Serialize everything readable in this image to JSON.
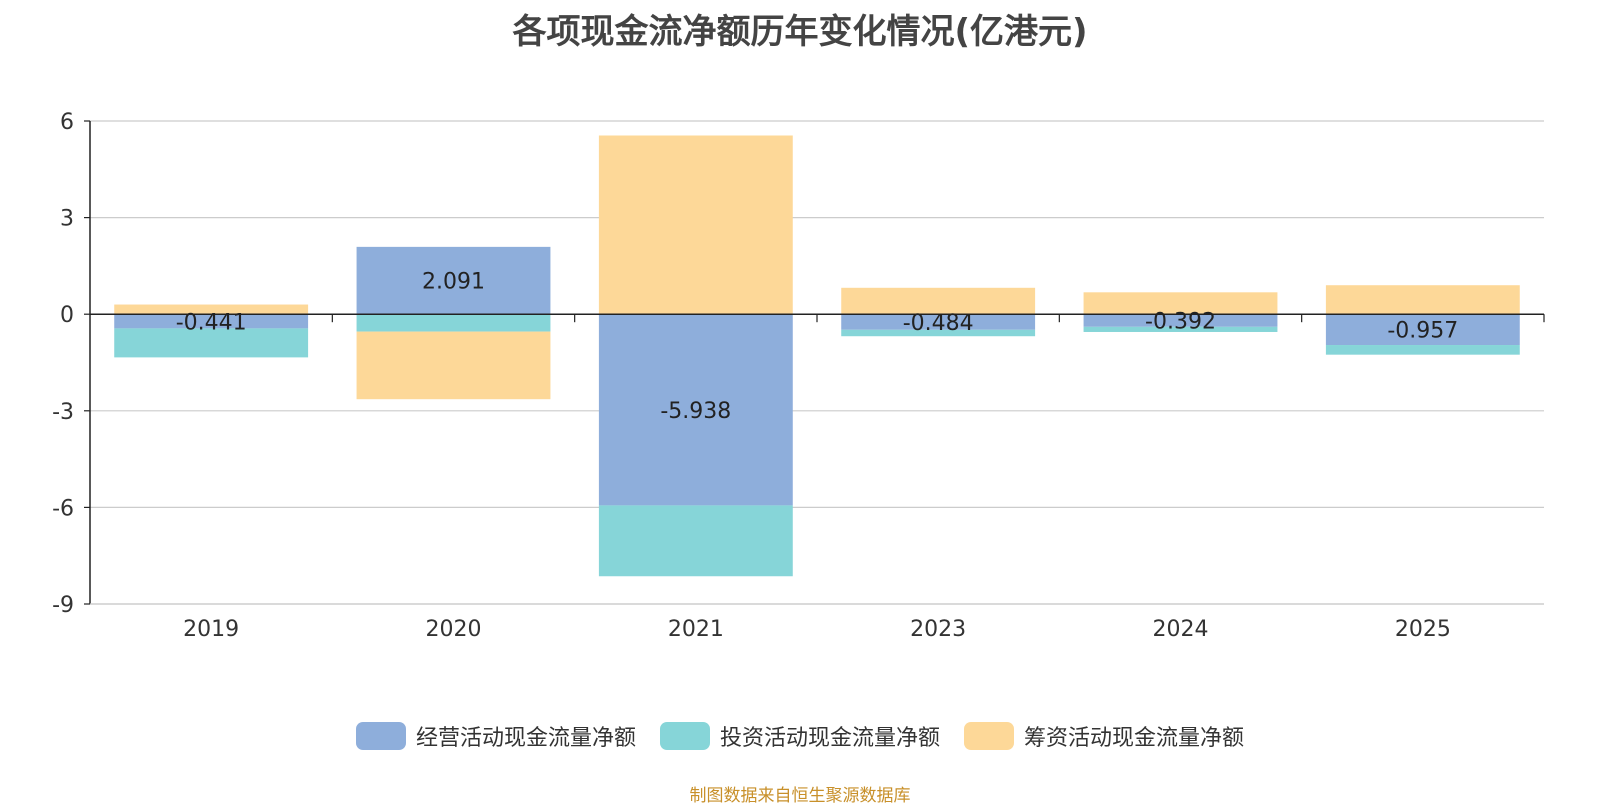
{
  "title": "各项现金流净额历年变化情况(亿港元)",
  "source_note": "制图数据来自恒生聚源数据库",
  "colors": {
    "operating": "#8eaedb",
    "investing": "#86d5d8",
    "financing": "#fdd898",
    "grid": "#cccccc",
    "axis": "#222222"
  },
  "chart_data": {
    "type": "bar",
    "stacked": true,
    "categories": [
      "2019",
      "2020",
      "2021",
      "2023",
      "2024",
      "2025"
    ],
    "series": [
      {
        "name": "经营活动现金流量净额",
        "values": [
          -0.441,
          2.091,
          -5.938,
          -0.484,
          -0.392,
          -0.957
        ]
      },
      {
        "name": "投资活动现金流量净额",
        "values": [
          -0.9,
          -0.54,
          -2.2,
          -0.2,
          -0.16,
          -0.3
        ]
      },
      {
        "name": "筹资活动现金流量净额",
        "values": [
          0.3,
          -2.1,
          5.55,
          0.82,
          0.68,
          0.9
        ]
      }
    ],
    "data_labels": [
      "-0.441",
      "2.091",
      "-5.938",
      "-0.484",
      "-0.392",
      "-0.957"
    ],
    "ylim": [
      -9,
      6
    ],
    "yticks": [
      "6",
      "3",
      "0",
      "-3",
      "-6",
      "-9"
    ],
    "grid": true,
    "legend_position": "bottom"
  }
}
